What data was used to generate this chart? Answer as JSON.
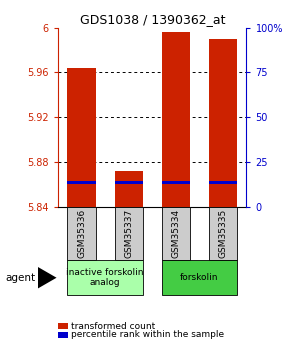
{
  "title": "GDS1038 / 1390362_at",
  "samples": [
    "GSM35336",
    "GSM35337",
    "GSM35334",
    "GSM35335"
  ],
  "transformed_counts": [
    5.964,
    5.872,
    5.996,
    5.99
  ],
  "bar_base": 5.84,
  "ylim": [
    5.84,
    6.0
  ],
  "yticks_left": [
    5.84,
    5.88,
    5.92,
    5.96,
    6.0
  ],
  "yticks_left_labels": [
    "5.84",
    "5.88",
    "5.92",
    "5.96",
    "6"
  ],
  "yticks_right": [
    0,
    25,
    50,
    75,
    100
  ],
  "yticks_right_labels": [
    "0",
    "25",
    "50",
    "75",
    "100%"
  ],
  "percentile_values": [
    5.862,
    5.862,
    5.862,
    5.862
  ],
  "percentile_bar_height": 0.003,
  "groups": [
    {
      "label": "inactive forskolin\nanalog",
      "color": "#aaffaa",
      "indices": [
        0,
        1
      ]
    },
    {
      "label": "forskolin",
      "color": "#44cc44",
      "indices": [
        2,
        3
      ]
    }
  ],
  "agent_label": "agent",
  "legend_items": [
    {
      "color": "#cc2200",
      "label": "transformed count"
    },
    {
      "color": "#0000cc",
      "label": "percentile rank within the sample"
    }
  ],
  "bar_color": "#cc2200",
  "percentile_color": "#0000cc",
  "left_axis_color": "#cc2200",
  "right_axis_color": "#0000cc",
  "sample_box_color": "#cccccc",
  "bar_width": 0.6,
  "grid_ticks": [
    5.88,
    5.92,
    5.96
  ]
}
